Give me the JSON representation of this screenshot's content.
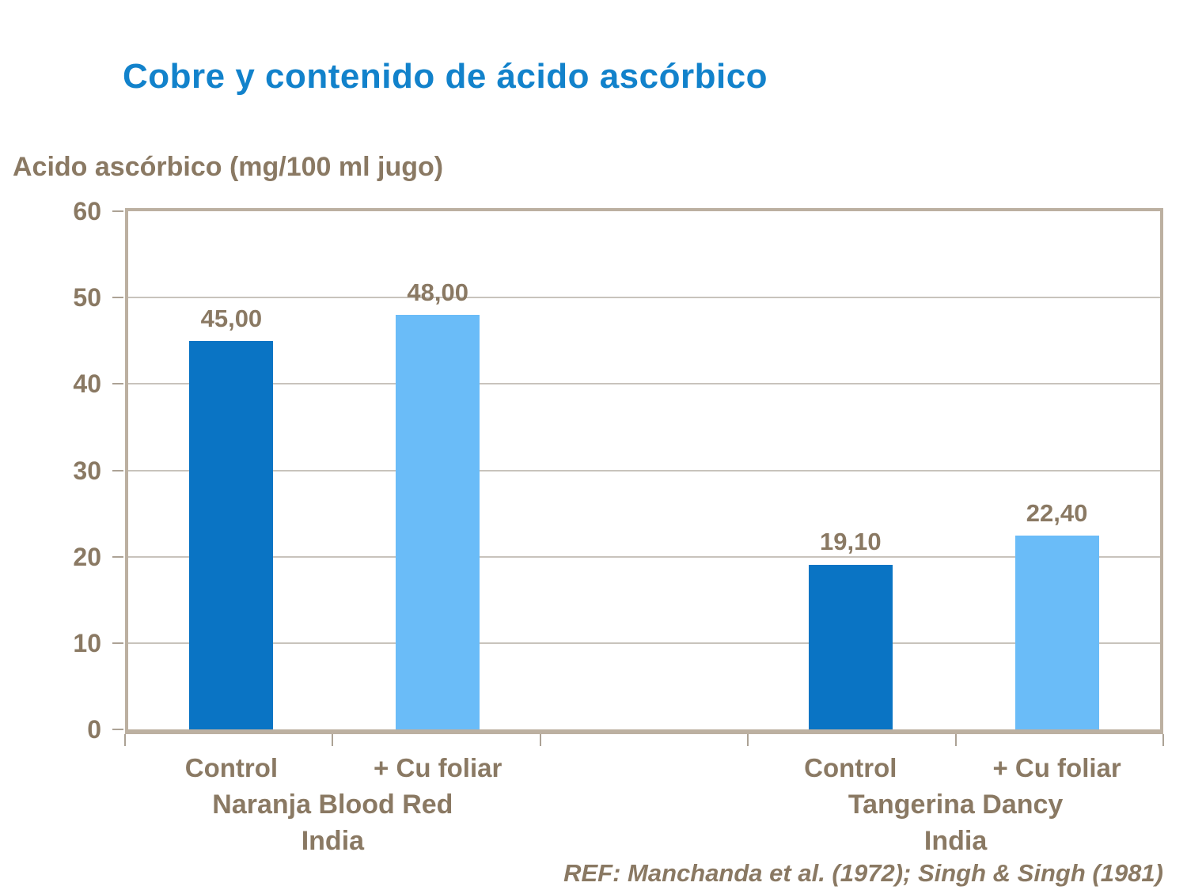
{
  "title": "Cobre y contenido de ácido ascórbico",
  "reference": "REF: Manchanda et al. (1972); Singh & Singh (1981)",
  "colors": {
    "title": "#1282CB",
    "text": "#8A7963",
    "axis": "#BCB0A1",
    "gridline": "#C8C3BC",
    "tick": "#ACA295"
  },
  "chart_data": {
    "type": "bar",
    "title": "Cobre y contenido de ácido ascórbico",
    "ylabel": "Acido ascórbico (mg/100 ml jugo)",
    "xlabel": "",
    "ylim": [
      0,
      60
    ],
    "yticks": [
      0,
      10,
      20,
      30,
      40,
      50,
      60
    ],
    "grid": true,
    "legend": false,
    "slots": 5,
    "colors": {
      "control": "#0A74C4",
      "cu_foliar": "#6ABCF8"
    },
    "bars": [
      {
        "slot": 0,
        "category": "Control",
        "group": "Naranja Blood Red India",
        "value": 45.0,
        "display": "45,00",
        "series": "control"
      },
      {
        "slot": 1,
        "category": "+ Cu foliar",
        "group": "Naranja Blood Red India",
        "value": 48.0,
        "display": "48,00",
        "series": "cu_foliar"
      },
      {
        "slot": 3,
        "category": "Control",
        "group": "Tangerina Dancy India",
        "value": 19.1,
        "display": "19,10",
        "series": "control"
      },
      {
        "slot": 4,
        "category": "+ Cu foliar",
        "group": "Tangerina Dancy India",
        "value": 22.4,
        "display": "22,40",
        "series": "cu_foliar"
      }
    ],
    "groups": [
      {
        "line1": "Naranja Blood Red",
        "line2": "India",
        "center_boundary": 1
      },
      {
        "line1": "Tangerina Dancy",
        "line2": "India",
        "center_boundary": 4
      }
    ]
  }
}
